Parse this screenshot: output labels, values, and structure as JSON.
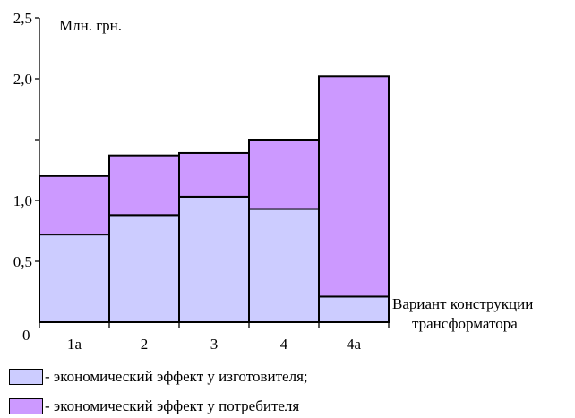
{
  "chart_data": {
    "type": "bar",
    "stacked": true,
    "ylabel": "Млн. грн.",
    "xlabel": "Вариант конструкции трансформатора",
    "xlabel_lines": [
      "Вариант конструкции",
      "трансформатора"
    ],
    "categories": [
      "1а",
      "2",
      "3",
      "4",
      "4а"
    ],
    "ylim": [
      0,
      2.5
    ],
    "origin_label": "0",
    "yticks": [
      0.5,
      1.0,
      2.0,
      2.5
    ],
    "ytick_labels": [
      "0,5",
      "1,0",
      "2,0",
      "2,5"
    ],
    "minor_yticks": [
      1.5
    ],
    "grid": false,
    "series": [
      {
        "name": "- экономический эффект у изготовителя;",
        "color": "#ccccff",
        "values": [
          0.72,
          0.88,
          1.03,
          0.93,
          0.21
        ]
      },
      {
        "name": "- экономический эффект у потребителя",
        "color": "#cc99ff",
        "values": [
          0.48,
          0.49,
          0.36,
          0.57,
          1.81
        ]
      }
    ]
  }
}
